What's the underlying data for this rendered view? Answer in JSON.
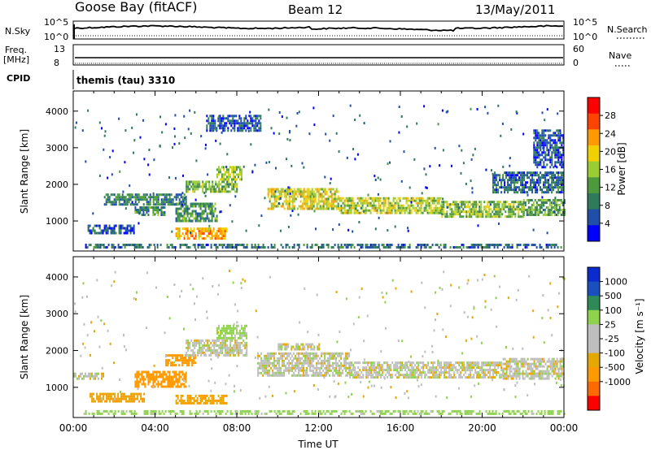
{
  "header": {
    "station": "Goose Bay (fitACF)",
    "beam": "Beam 12",
    "date": "13/May/2011"
  },
  "top_panels": {
    "nsky_label": "N.Sky",
    "nsky_ticks": [
      "10^5",
      "10^0"
    ],
    "nsearch_label": "N.Search",
    "nsearch_ticks": [
      "10^5",
      "10^0"
    ],
    "freq_label": "Freq.",
    "freq_unit": "[MHz]",
    "freq_ticks": [
      "13",
      "8"
    ],
    "nave_label": "Nave",
    "nave_ticks": [
      "60",
      "0"
    ],
    "cpid_label": "CPID",
    "cpid_value": "themis (tau) 3310"
  },
  "colors": {
    "power_scale": [
      "#0000ff",
      "#1f4fa8",
      "#2e7a5a",
      "#4c9a3c",
      "#9acd32",
      "#f0d000",
      "#ff9900",
      "#ff4400",
      "#ff0000"
    ],
    "velocity_scale": [
      "#ff0000",
      "#ff6a00",
      "#ff9900",
      "#e6a800",
      "#bebebe",
      "#bebebe",
      "#8fd24c",
      "#2e8b57",
      "#1a4fbf",
      "#0a2bd0"
    ]
  },
  "chart_data": [
    {
      "type": "heatmap",
      "panel": "power",
      "ylabel": "Slant Range [km]",
      "ylim": [
        180,
        4550
      ],
      "yticks": [
        "1000",
        "2000",
        "3000",
        "4000"
      ],
      "xlim": [
        0,
        24
      ],
      "colorbar_label": "Power [dB]",
      "colorbar_ticks": [
        "4",
        "8",
        "12",
        "16",
        "20",
        "24",
        "28"
      ],
      "colorbar_range": [
        0,
        32
      ],
      "regions": [
        {
          "x": [
            0.7,
            3.0
          ],
          "y": [
            650,
            900
          ],
          "value": 6
        },
        {
          "x": [
            1.5,
            5.5
          ],
          "y": [
            1450,
            1750
          ],
          "value": 9
        },
        {
          "x": [
            3.0,
            4.5
          ],
          "y": [
            1150,
            1400
          ],
          "value": 10
        },
        {
          "x": [
            5.0,
            7.0
          ],
          "y": [
            1000,
            1500
          ],
          "value": 11
        },
        {
          "x": [
            5.5,
            8.0
          ],
          "y": [
            1800,
            2100
          ],
          "value": 14
        },
        {
          "x": [
            7.0,
            8.2
          ],
          "y": [
            2150,
            2500
          ],
          "value": 16
        },
        {
          "x": [
            5.0,
            7.5
          ],
          "y": [
            550,
            820
          ],
          "value": 22
        },
        {
          "x": [
            6.5,
            9.2
          ],
          "y": [
            3450,
            3900
          ],
          "value": 5
        },
        {
          "x": [
            9.5,
            13.0
          ],
          "y": [
            1350,
            1900
          ],
          "value": 18
        },
        {
          "x": [
            13.0,
            18.0
          ],
          "y": [
            1200,
            1650
          ],
          "value": 17
        },
        {
          "x": [
            18.0,
            22.0
          ],
          "y": [
            1150,
            1550
          ],
          "value": 15
        },
        {
          "x": [
            22.0,
            24.0
          ],
          "y": [
            1200,
            1600
          ],
          "value": 12
        },
        {
          "x": [
            20.5,
            24.0
          ],
          "y": [
            1800,
            2350
          ],
          "value": 7
        },
        {
          "x": [
            22.5,
            24.0
          ],
          "y": [
            2500,
            3500
          ],
          "value": 6
        },
        {
          "x": [
            0.5,
            24.0
          ],
          "y": [
            300,
            380
          ],
          "value": 8
        }
      ]
    },
    {
      "type": "heatmap",
      "panel": "velocity",
      "ylabel": "Slant Range [km]",
      "ylim": [
        180,
        4550
      ],
      "yticks": [
        "1000",
        "2000",
        "3000",
        "4000"
      ],
      "xlim": [
        0,
        24
      ],
      "xticks": [
        "00:00",
        "04:00",
        "08:00",
        "12:00",
        "16:00",
        "20:00",
        "00:00"
      ],
      "xlabel": "Time UT",
      "colorbar_label": "Velocity [m s⁻¹]",
      "colorbar_ticks": [
        "1000",
        "500",
        "100",
        "25",
        "-25",
        "-100",
        "-500",
        "-1000"
      ],
      "regions": [
        {
          "x": [
            0.0,
            1.5
          ],
          "y": [
            1250,
            1400
          ],
          "value": 0
        },
        {
          "x": [
            3.0,
            5.5
          ],
          "y": [
            1050,
            1450
          ],
          "value": -300
        },
        {
          "x": [
            4.5,
            6.0
          ],
          "y": [
            1600,
            1900
          ],
          "value": -200
        },
        {
          "x": [
            0.8,
            3.5
          ],
          "y": [
            650,
            850
          ],
          "value": -90
        },
        {
          "x": [
            5.0,
            7.5
          ],
          "y": [
            580,
            800
          ],
          "value": -90
        },
        {
          "x": [
            5.5,
            8.5
          ],
          "y": [
            1900,
            2300
          ],
          "value": 0
        },
        {
          "x": [
            7.0,
            8.5
          ],
          "y": [
            2350,
            2700
          ],
          "value": 50
        },
        {
          "x": [
            9.0,
            13.5
          ],
          "y": [
            1300,
            1950
          ],
          "value": 0
        },
        {
          "x": [
            13.5,
            21.0
          ],
          "y": [
            1250,
            1700
          ],
          "value": 0
        },
        {
          "x": [
            21.0,
            24.0
          ],
          "y": [
            1250,
            1800
          ],
          "value": 0
        },
        {
          "x": [
            10.0,
            12.0
          ],
          "y": [
            2050,
            2200
          ],
          "value": 0
        },
        {
          "x": [
            0.5,
            24.0
          ],
          "y": [
            300,
            380
          ],
          "value": 60
        }
      ]
    }
  ]
}
